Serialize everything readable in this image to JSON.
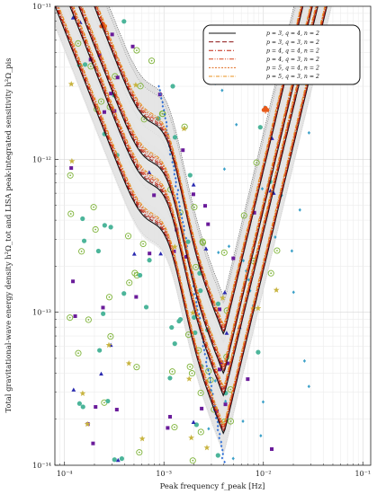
{
  "chart_data": {
    "type": "line",
    "xlabel": "Peak frequency f_peak [Hz]",
    "ylabel": "Total gravitational-wave energy density h²Ω_tot and LISA peak-integrated sensitivity h²Ω_pis",
    "x_scale": "log",
    "y_scale": "log",
    "xlim": [
      8e-05,
      0.12
    ],
    "ylim": [
      1e-14,
      1e-11
    ],
    "grid": true,
    "legend_placement": "top-right",
    "x_ticks": [
      {
        "value": 0.0001,
        "label": "10⁻⁴"
      },
      {
        "value": 0.001,
        "label": "10⁻³"
      },
      {
        "value": 0.01,
        "label": "10⁻²"
      },
      {
        "value": 0.1,
        "label": "10⁻¹"
      }
    ],
    "y_ticks": [
      {
        "value": 1e-14,
        "label": "10⁻¹⁴"
      },
      {
        "value": 1e-13,
        "label": "10⁻¹³"
      },
      {
        "value": 1e-12,
        "label": "10⁻¹²"
      },
      {
        "value": 1e-11,
        "label": "10⁻¹¹"
      }
    ],
    "series": [
      {
        "name": "p = 3, q = 4, n = 2",
        "color": "#111111",
        "dash": "",
        "width": 1.1
      },
      {
        "name": "p = 3, q = 3, n = 2",
        "color": "#8b1010",
        "dash": "5,2.5",
        "width": 1.0
      },
      {
        "name": "p = 4, q = 4, n = 2",
        "color": "#c0200e",
        "dash": "5,2,1,2",
        "width": 1.0
      },
      {
        "name": "p = 4, q = 3, n = 2",
        "color": "#d8401a",
        "dash": "5,1.5,1,1.5,1,1.5",
        "width": 1.0
      },
      {
        "name": "p = 5, q = 4, n = 2",
        "color": "#e06a1e",
        "dash": "2,1.5",
        "width": 1.0
      },
      {
        "name": "p = 5, q = 3, n = 2",
        "color": "#e8911f",
        "dash": "4,1.5,1,1.5",
        "width": 1.0
      }
    ],
    "curve_shape": {
      "min_frequency": 0.004,
      "low_side_slope": 1.65,
      "high_side_slope": 2.7,
      "knee_frequency": 0.0011,
      "knee_log_boost": 0.33,
      "minima": [
        1.7e-14,
        3e-14,
        4.2e-14,
        7.6e-14
      ]
    },
    "shaded_bands": [
      {
        "min_center": 1.7e-14,
        "half_width": 0.17
      },
      {
        "min_center": 3e-14,
        "half_width": 0.17
      },
      {
        "min_center": 4.2e-14,
        "half_width": 0.17
      },
      {
        "min_center": 7.6e-14,
        "half_width": 0.17
      }
    ],
    "outer_envelope": {
      "lower_min": 1.2e-14,
      "upper_min": 1.25e-13,
      "color": "#c4c4c4"
    },
    "scatter": [
      {
        "marker": "ring",
        "color": "#7fb43a",
        "count": 60
      },
      {
        "marker": "dot",
        "color": "#4cb59a",
        "count": 45
      },
      {
        "marker": "square",
        "color": "#6a1b9a",
        "count": 40
      },
      {
        "marker": "triangle",
        "color": "#2a2ab0",
        "count": 20
      },
      {
        "marker": "star",
        "color": "#c8b440",
        "count": 18
      },
      {
        "marker": "diamond",
        "color": "#3aa0c8",
        "count": 30
      },
      {
        "marker": "clover",
        "color": "#e85a1a",
        "count": 2
      }
    ],
    "blue_diagonal": {
      "color": "#2f6fd6",
      "from": [
        0.0009,
        3e-12
      ],
      "to": [
        0.004,
        1.05e-14
      ],
      "count": 95
    }
  }
}
